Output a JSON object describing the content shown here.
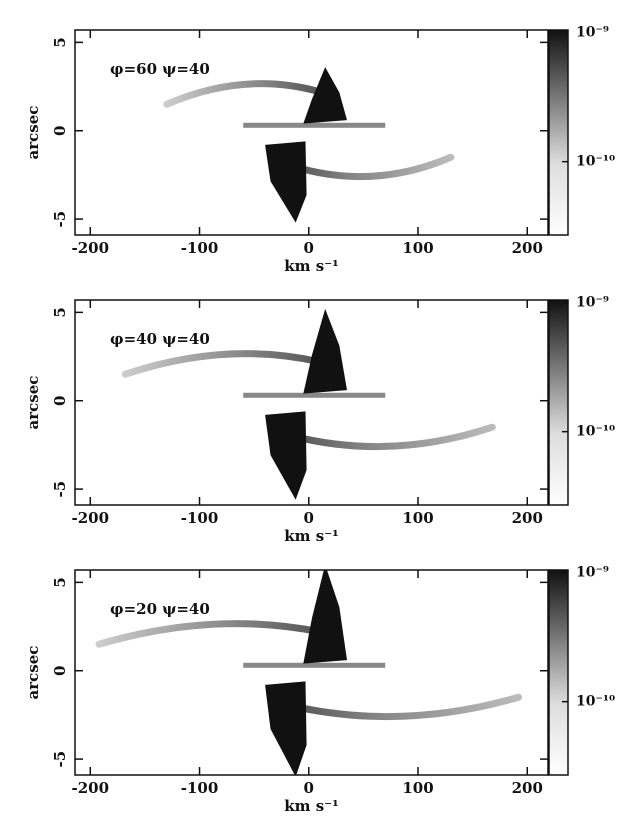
{
  "chart_data": [
    {
      "type": "image",
      "title": "φ=60 ψ=40",
      "xlabel": "km s⁻¹",
      "ylabel": "arcsec",
      "xlim": [
        -214,
        219
      ],
      "ylim": [
        -5.9,
        5.7
      ],
      "xticks": [
        -200,
        -100,
        0,
        100,
        200
      ],
      "yticks": [
        -5,
        0,
        5
      ],
      "colorbar": {
        "log": true,
        "clim": [
          2.7e-11,
          1.05e-09
        ],
        "ticks": [
          {
            "value": 1e-09,
            "label": "10⁻⁹"
          },
          {
            "value": 1e-10,
            "label": "10⁻¹⁰"
          }
        ]
      }
    },
    {
      "type": "image",
      "title": "φ=40 ψ=40",
      "xlabel": "km s⁻¹",
      "ylabel": "arcsec",
      "xlim": [
        -214,
        219
      ],
      "ylim": [
        -5.9,
        5.7
      ],
      "xticks": [
        -200,
        -100,
        0,
        100,
        200
      ],
      "yticks": [
        -5,
        0,
        5
      ],
      "colorbar": {
        "log": true,
        "clim": [
          2.7e-11,
          1.05e-09
        ],
        "ticks": [
          {
            "value": 1e-09,
            "label": "10⁻⁹"
          },
          {
            "value": 1e-10,
            "label": "10⁻¹⁰"
          }
        ]
      }
    },
    {
      "type": "image",
      "title": "φ=20 ψ=40",
      "xlabel": "km s⁻¹",
      "ylabel": "arcsec",
      "xlim": [
        -214,
        219
      ],
      "ylim": [
        -5.9,
        5.7
      ],
      "xticks": [
        -200,
        -100,
        0,
        100,
        200
      ],
      "yticks": [
        -5,
        0,
        5
      ],
      "colorbar": {
        "log": true,
        "clim": [
          2.7e-11,
          1.05e-09
        ],
        "ticks": [
          {
            "value": 1e-09,
            "label": "10⁻⁹"
          },
          {
            "value": 1e-10,
            "label": "10⁻¹⁰"
          }
        ]
      }
    }
  ]
}
